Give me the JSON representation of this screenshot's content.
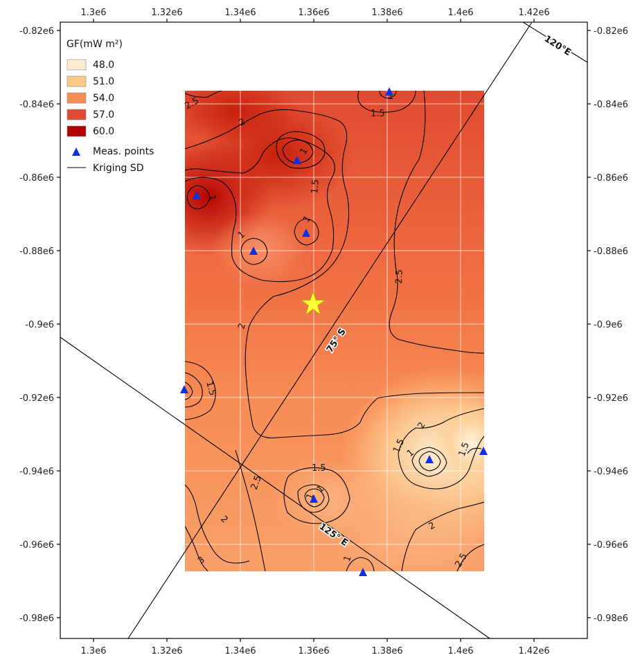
{
  "map": {
    "x_ticks": [
      "1.3e6",
      "1.32e6",
      "1.34e6",
      "1.36e6",
      "1.38e6",
      "1.4e6",
      "1.42e6"
    ],
    "y_ticks": [
      "-0.82e6",
      "-0.84e6",
      "-0.86e6",
      "-0.88e6",
      "-0.9e6",
      "-0.92e6",
      "-0.94e6",
      "-0.96e6",
      "-0.98e6"
    ],
    "legend": {
      "title": "GF(mW m²)",
      "classes": [
        {
          "label": "48.0",
          "color": "#fdebd2"
        },
        {
          "label": "51.0",
          "color": "#fdc987"
        },
        {
          "label": "54.0",
          "color": "#f88e55"
        },
        {
          "label": "57.0",
          "color": "#e34a33"
        },
        {
          "label": "60.0",
          "color": "#b30000"
        }
      ],
      "points_label": "Meas. points",
      "points_color": "#1030e0",
      "line_label": "Kriging SD"
    },
    "graticule_labels": {
      "lat": "75° S",
      "lon_125": "125° E",
      "lon_120": "120°E"
    },
    "contour_labels": [
      "2.5",
      "2",
      "1.5",
      "1",
      "1",
      "1.5",
      "1",
      "1",
      "1",
      "2.5",
      "2",
      "1.5",
      "1.5",
      "1.5",
      "1",
      "1",
      "1.5",
      "2",
      "2.5",
      "2",
      "1",
      "1",
      "2",
      "2.5",
      "3",
      "2.5",
      "1.5"
    ],
    "star_color": "#ffff33"
  }
}
